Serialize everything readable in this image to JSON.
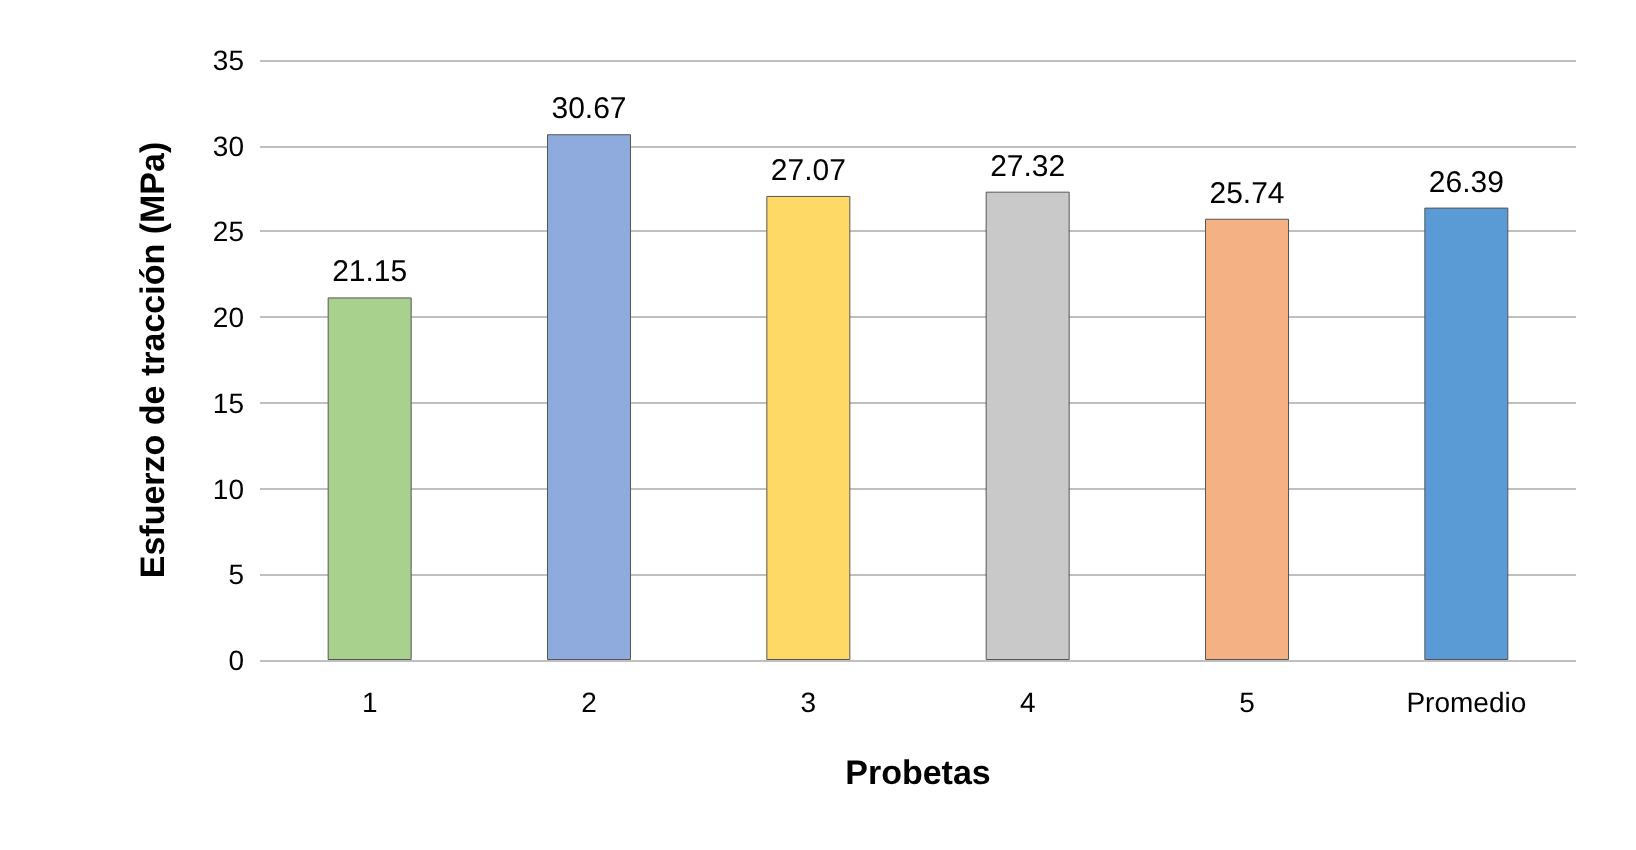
{
  "chart_data": {
    "type": "bar",
    "xlabel": "Probetas",
    "ylabel": "Esfuerzo de tracción (MPa)",
    "categories": [
      "1",
      "2",
      "3",
      "4",
      "5",
      "Promedio"
    ],
    "values": [
      21.15,
      30.67,
      27.07,
      27.32,
      25.74,
      26.39
    ],
    "colors": [
      "#a9d18e",
      "#8faadc",
      "#ffd966",
      "#c9c9c9",
      "#f4b183",
      "#5b9bd5"
    ],
    "ylim": [
      0,
      35
    ],
    "yticks": [
      0,
      5,
      10,
      15,
      20,
      25,
      30,
      35
    ],
    "grid": "y",
    "data_labels": true
  }
}
